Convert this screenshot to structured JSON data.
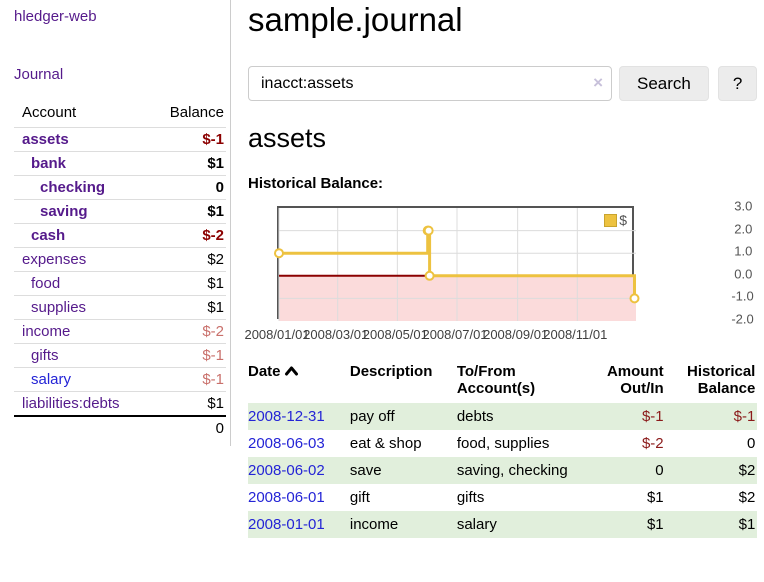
{
  "sidebar": {
    "app_title": "hledger-web",
    "nav": {
      "journal": "Journal"
    },
    "accounts_table": {
      "col_account": "Account",
      "col_balance": "Balance",
      "rows": [
        {
          "label": "assets",
          "depth": 1,
          "bold": true,
          "balance": "$-1",
          "neg": "strong"
        },
        {
          "label": "bank",
          "depth": 2,
          "bold": true,
          "balance": "$1"
        },
        {
          "label": "checking",
          "depth": 3,
          "bold": true,
          "balance": "0"
        },
        {
          "label": "saving",
          "depth": 3,
          "bold": true,
          "balance": "$1"
        },
        {
          "label": "cash",
          "depth": 2,
          "bold": true,
          "balance": "$-2",
          "neg": "strong"
        },
        {
          "label": "expenses",
          "depth": 1,
          "bold": false,
          "balance": "$2"
        },
        {
          "label": "food",
          "depth": 2,
          "bold": false,
          "balance": "$1"
        },
        {
          "label": "supplies",
          "depth": 2,
          "bold": false,
          "balance": "$1"
        },
        {
          "label": "income",
          "depth": 1,
          "bold": false,
          "balance": "$-2",
          "neg": "soft"
        },
        {
          "label": "gifts",
          "depth": 2,
          "bold": false,
          "balance": "$-1",
          "neg": "soft"
        },
        {
          "label": "salary",
          "depth": 2,
          "bold": false,
          "balance": "$-1",
          "neg": "soft",
          "link_blue": true
        },
        {
          "label": "liabilities:debts",
          "depth": 1,
          "bold": false,
          "balance": "$1"
        }
      ],
      "total": "0"
    }
  },
  "main": {
    "title": "sample.journal",
    "search": {
      "value": "inacct:assets",
      "clear_icon": "×",
      "button_label": "Search",
      "help_label": "?"
    },
    "account_heading": "assets",
    "chart_heading": "Historical Balance:"
  },
  "chart_data": {
    "type": "line",
    "style": "step-with-markers",
    "series": [
      {
        "name": "$",
        "points": [
          {
            "date": "2008-01-01",
            "value": 1
          },
          {
            "date": "2008-06-01",
            "value": 2
          },
          {
            "date": "2008-06-02",
            "value": 2
          },
          {
            "date": "2008-06-03",
            "value": 0
          },
          {
            "date": "2008-12-31",
            "value": -1
          }
        ]
      }
    ],
    "xticks": [
      {
        "label": "2008/01/01",
        "day": 0
      },
      {
        "label": "2008/03/01",
        "day": 60
      },
      {
        "label": "2008/05/01",
        "day": 121
      },
      {
        "label": "2008/07/01",
        "day": 182
      },
      {
        "label": "2008/09/01",
        "day": 244
      },
      {
        "label": "2008/11/01",
        "day": 305
      }
    ],
    "x_total_days": 365,
    "yticks": [
      3.0,
      2.0,
      1.0,
      0.0,
      -1.0,
      -2.0
    ],
    "ylim": [
      -2.0,
      3.0
    ],
    "grid": true,
    "legend_position": "top-right",
    "colors": {
      "line": "#edc240",
      "negative_region": "#fbdbdb",
      "zero_line": "#8b0000",
      "gridline": "#dcdcdc",
      "plot_border": "#545454"
    }
  },
  "transactions": {
    "headers": {
      "date": "Date",
      "description": "Description",
      "accounts": "To/From Account(s)",
      "amount": "Amount Out/In",
      "balance": "Historical Balance"
    },
    "sort_icon": "chevron-up",
    "rows": [
      {
        "date": "2008-12-31",
        "description": "pay off",
        "accounts": "debts",
        "amount": "$-1",
        "amount_neg": true,
        "balance": "$-1",
        "balance_neg": true
      },
      {
        "date": "2008-06-03",
        "description": "eat & shop",
        "accounts": "food, supplies",
        "amount": "$-2",
        "amount_neg": true,
        "balance": "0",
        "balance_neg": false
      },
      {
        "date": "2008-06-02",
        "description": "save",
        "accounts": "saving, checking",
        "amount": "0",
        "amount_neg": false,
        "balance": "$2",
        "balance_neg": false
      },
      {
        "date": "2008-06-01",
        "description": "gift",
        "accounts": "gifts",
        "amount": "$1",
        "amount_neg": false,
        "balance": "$2",
        "balance_neg": false
      },
      {
        "date": "2008-01-01",
        "description": "income",
        "accounts": "salary",
        "amount": "$1",
        "amount_neg": false,
        "balance": "$1",
        "balance_neg": false
      }
    ]
  }
}
